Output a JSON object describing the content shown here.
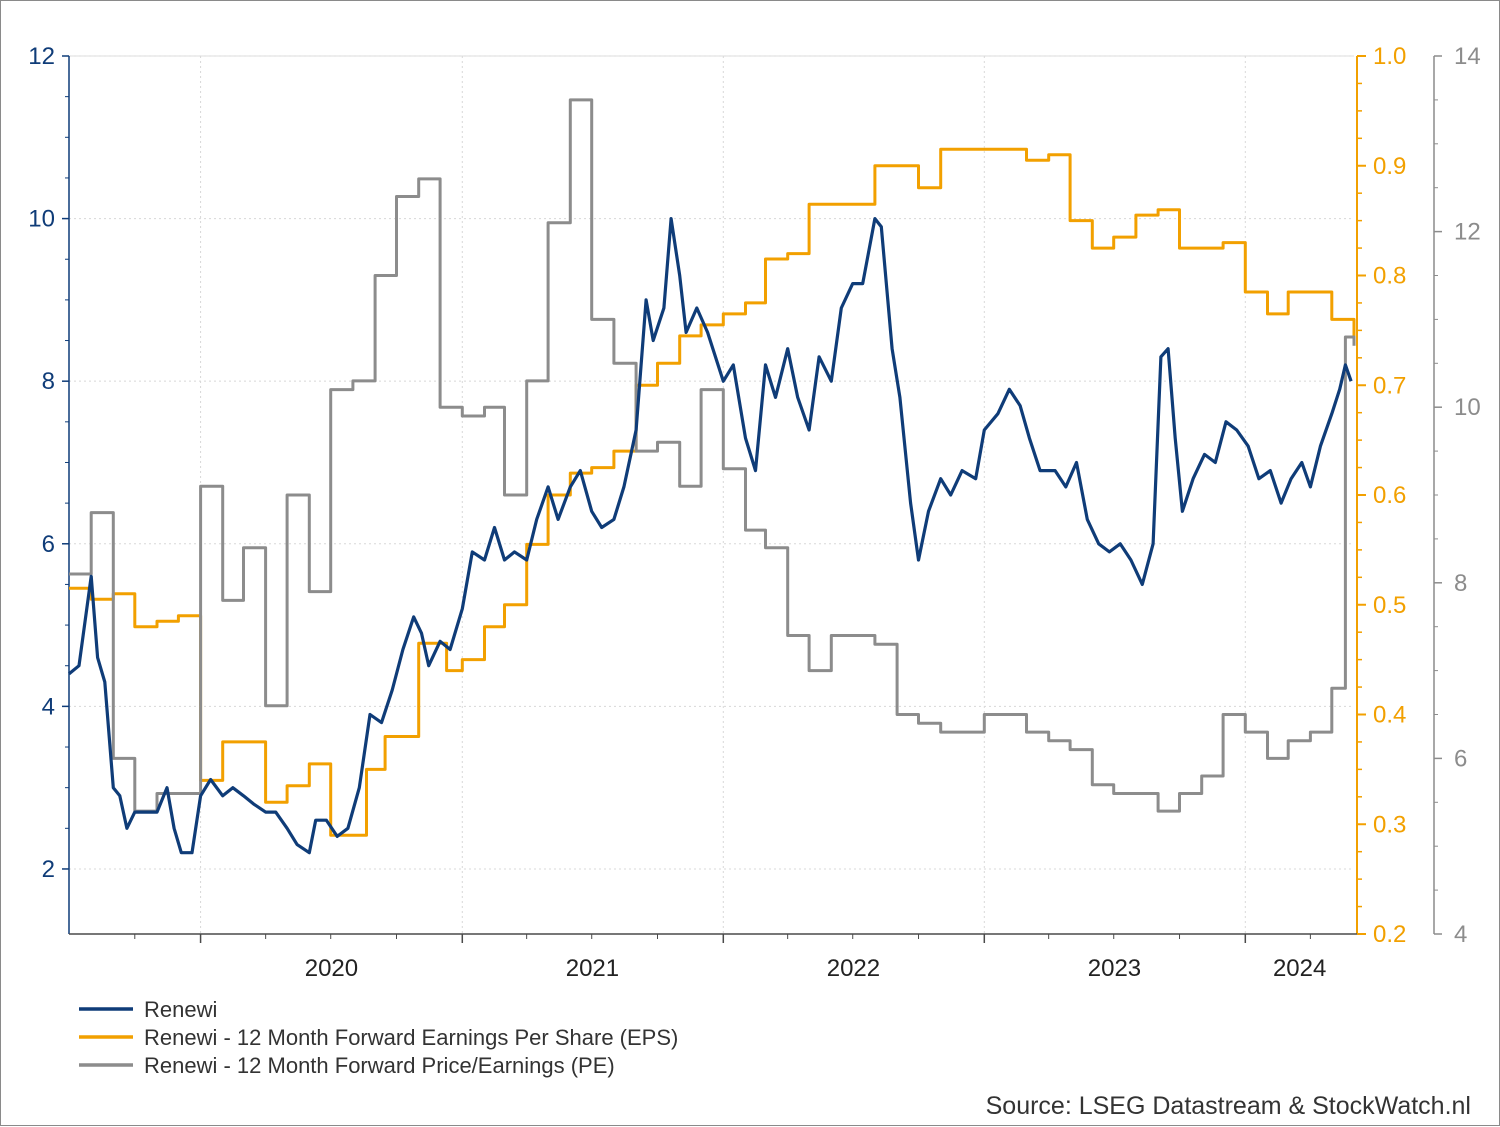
{
  "chart_data": {
    "type": "line",
    "title": "",
    "source": "Source: LSEG Datastream & StockWatch.nl",
    "x_range": [
      "2019-07-01",
      "2024-06-01"
    ],
    "x_ticks": [
      {
        "label": "2020",
        "date": "2020-01-01"
      },
      {
        "label": "2021",
        "date": "2021-01-01"
      },
      {
        "label": "2022",
        "date": "2022-01-01"
      },
      {
        "label": "2023",
        "date": "2023-01-01"
      },
      {
        "label": "2024",
        "date": "2024-01-01"
      }
    ],
    "axes": {
      "left": {
        "series": "Renewi",
        "min": 1.2,
        "max": 12,
        "ticks": [
          "2",
          "4",
          "6",
          "8",
          "10",
          "12"
        ],
        "color": "#0f3c78"
      },
      "right1": {
        "series": "Renewi - 12 Month Forward Earnings Per Share (EPS)",
        "min": 0.2,
        "max": 1.0,
        "ticks": [
          "0.2",
          "0.3",
          "0.4",
          "0.5",
          "0.6",
          "0.7",
          "0.8",
          "0.9",
          "1.0"
        ],
        "color": "#f2a000"
      },
      "right2": {
        "series": "Renewi - 12 Month Forward Price/Earnings (PE)",
        "min": 4,
        "max": 14,
        "ticks": [
          "4",
          "6",
          "8",
          "10",
          "12",
          "14"
        ],
        "color": "#8c8c8c"
      }
    },
    "grid": true,
    "legend_position": "bottom-left",
    "series": [
      {
        "name": "Renewi",
        "axis": "left",
        "color": "#0f3c78",
        "points": [
          [
            "2019-07-01",
            4.4
          ],
          [
            "2019-07-15",
            4.5
          ],
          [
            "2019-08-01",
            5.6
          ],
          [
            "2019-08-10",
            4.6
          ],
          [
            "2019-08-20",
            4.3
          ],
          [
            "2019-09-01",
            3.0
          ],
          [
            "2019-09-10",
            2.9
          ],
          [
            "2019-09-20",
            2.5
          ],
          [
            "2019-10-01",
            2.7
          ],
          [
            "2019-10-15",
            2.7
          ],
          [
            "2019-11-01",
            2.7
          ],
          [
            "2019-11-15",
            3.0
          ],
          [
            "2019-11-25",
            2.5
          ],
          [
            "2019-12-05",
            2.2
          ],
          [
            "2019-12-20",
            2.2
          ],
          [
            "2020-01-01",
            2.9
          ],
          [
            "2020-01-15",
            3.1
          ],
          [
            "2020-02-01",
            2.9
          ],
          [
            "2020-02-15",
            3.0
          ],
          [
            "2020-03-01",
            2.9
          ],
          [
            "2020-03-15",
            2.8
          ],
          [
            "2020-04-01",
            2.7
          ],
          [
            "2020-04-15",
            2.7
          ],
          [
            "2020-05-01",
            2.5
          ],
          [
            "2020-05-15",
            2.3
          ],
          [
            "2020-06-01",
            2.2
          ],
          [
            "2020-06-10",
            2.6
          ],
          [
            "2020-06-25",
            2.6
          ],
          [
            "2020-07-10",
            2.4
          ],
          [
            "2020-07-25",
            2.5
          ],
          [
            "2020-08-10",
            3.0
          ],
          [
            "2020-08-25",
            3.9
          ],
          [
            "2020-09-10",
            3.8
          ],
          [
            "2020-09-25",
            4.2
          ],
          [
            "2020-10-10",
            4.7
          ],
          [
            "2020-10-25",
            5.1
          ],
          [
            "2020-11-05",
            4.9
          ],
          [
            "2020-11-15",
            4.5
          ],
          [
            "2020-12-01",
            4.8
          ],
          [
            "2020-12-15",
            4.7
          ],
          [
            "2021-01-01",
            5.2
          ],
          [
            "2021-01-15",
            5.9
          ],
          [
            "2021-02-01",
            5.8
          ],
          [
            "2021-02-15",
            6.2
          ],
          [
            "2021-03-01",
            5.8
          ],
          [
            "2021-03-15",
            5.9
          ],
          [
            "2021-04-01",
            5.8
          ],
          [
            "2021-04-15",
            6.3
          ],
          [
            "2021-05-01",
            6.7
          ],
          [
            "2021-05-15",
            6.3
          ],
          [
            "2021-06-01",
            6.7
          ],
          [
            "2021-06-15",
            6.9
          ],
          [
            "2021-07-01",
            6.4
          ],
          [
            "2021-07-15",
            6.2
          ],
          [
            "2021-08-01",
            6.3
          ],
          [
            "2021-08-15",
            6.7
          ],
          [
            "2021-09-01",
            7.4
          ],
          [
            "2021-09-15",
            9.0
          ],
          [
            "2021-09-25",
            8.5
          ],
          [
            "2021-10-10",
            8.9
          ],
          [
            "2021-10-20",
            10.0
          ],
          [
            "2021-11-01",
            9.3
          ],
          [
            "2021-11-10",
            8.6
          ],
          [
            "2021-11-25",
            8.9
          ],
          [
            "2021-12-10",
            8.6
          ],
          [
            "2022-01-01",
            8.0
          ],
          [
            "2022-01-15",
            8.2
          ],
          [
            "2022-02-01",
            7.3
          ],
          [
            "2022-02-15",
            6.9
          ],
          [
            "2022-03-01",
            8.2
          ],
          [
            "2022-03-15",
            7.8
          ],
          [
            "2022-04-01",
            8.4
          ],
          [
            "2022-04-15",
            7.8
          ],
          [
            "2022-05-01",
            7.4
          ],
          [
            "2022-05-15",
            8.3
          ],
          [
            "2022-06-01",
            8.0
          ],
          [
            "2022-06-15",
            8.9
          ],
          [
            "2022-07-01",
            9.2
          ],
          [
            "2022-07-15",
            9.2
          ],
          [
            "2022-08-01",
            10.0
          ],
          [
            "2022-08-10",
            9.9
          ],
          [
            "2022-08-25",
            8.4
          ],
          [
            "2022-09-05",
            7.8
          ],
          [
            "2022-09-20",
            6.5
          ],
          [
            "2022-10-01",
            5.8
          ],
          [
            "2022-10-15",
            6.4
          ],
          [
            "2022-11-01",
            6.8
          ],
          [
            "2022-11-15",
            6.6
          ],
          [
            "2022-12-01",
            6.9
          ],
          [
            "2022-12-20",
            6.8
          ],
          [
            "2023-01-01",
            7.4
          ],
          [
            "2023-01-20",
            7.6
          ],
          [
            "2023-02-05",
            7.9
          ],
          [
            "2023-02-20",
            7.7
          ],
          [
            "2023-03-05",
            7.3
          ],
          [
            "2023-03-20",
            6.9
          ],
          [
            "2023-04-10",
            6.9
          ],
          [
            "2023-04-25",
            6.7
          ],
          [
            "2023-05-10",
            7.0
          ],
          [
            "2023-05-25",
            6.3
          ],
          [
            "2023-06-10",
            6.0
          ],
          [
            "2023-06-25",
            5.9
          ],
          [
            "2023-07-10",
            6.0
          ],
          [
            "2023-07-25",
            5.8
          ],
          [
            "2023-08-10",
            5.5
          ],
          [
            "2023-08-25",
            6.0
          ],
          [
            "2023-09-05",
            8.3
          ],
          [
            "2023-09-15",
            8.4
          ],
          [
            "2023-09-25",
            7.3
          ],
          [
            "2023-10-05",
            6.4
          ],
          [
            "2023-10-20",
            6.8
          ],
          [
            "2023-11-05",
            7.1
          ],
          [
            "2023-11-20",
            7.0
          ],
          [
            "2023-12-05",
            7.5
          ],
          [
            "2023-12-20",
            7.4
          ],
          [
            "2024-01-05",
            7.2
          ],
          [
            "2024-01-20",
            6.8
          ],
          [
            "2024-02-05",
            6.9
          ],
          [
            "2024-02-20",
            6.5
          ],
          [
            "2024-03-05",
            6.8
          ],
          [
            "2024-03-20",
            7.0
          ],
          [
            "2024-04-01",
            6.7
          ],
          [
            "2024-04-15",
            7.2
          ],
          [
            "2024-05-01",
            7.6
          ],
          [
            "2024-05-12",
            7.9
          ],
          [
            "2024-05-20",
            8.2
          ],
          [
            "2024-05-28",
            8.0
          ]
        ]
      },
      {
        "name": "Renewi - 12 Month Forward Earnings Per Share (EPS)",
        "axis": "right1",
        "color": "#f2a000",
        "step": true,
        "points": [
          [
            "2019-07-01",
            0.515
          ],
          [
            "2019-08-01",
            0.505
          ],
          [
            "2019-09-01",
            0.51
          ],
          [
            "2019-10-01",
            0.48
          ],
          [
            "2019-11-01",
            0.485
          ],
          [
            "2019-12-01",
            0.49
          ],
          [
            "2020-01-01",
            0.34
          ],
          [
            "2020-02-01",
            0.375
          ],
          [
            "2020-03-01",
            0.375
          ],
          [
            "2020-04-01",
            0.32
          ],
          [
            "2020-05-01",
            0.335
          ],
          [
            "2020-06-01",
            0.355
          ],
          [
            "2020-07-01",
            0.29
          ],
          [
            "2020-08-01",
            0.29
          ],
          [
            "2020-08-20",
            0.35
          ],
          [
            "2020-09-15",
            0.38
          ],
          [
            "2020-11-01",
            0.465
          ],
          [
            "2020-12-10",
            0.44
          ],
          [
            "2021-01-01",
            0.45
          ],
          [
            "2021-02-01",
            0.48
          ],
          [
            "2021-03-01",
            0.5
          ],
          [
            "2021-04-01",
            0.555
          ],
          [
            "2021-05-01",
            0.6
          ],
          [
            "2021-06-01",
            0.62
          ],
          [
            "2021-07-01",
            0.625
          ],
          [
            "2021-08-01",
            0.64
          ],
          [
            "2021-09-01",
            0.7
          ],
          [
            "2021-10-01",
            0.72
          ],
          [
            "2021-11-01",
            0.745
          ],
          [
            "2021-12-01",
            0.755
          ],
          [
            "2022-01-01",
            0.765
          ],
          [
            "2022-02-01",
            0.775
          ],
          [
            "2022-03-01",
            0.815
          ],
          [
            "2022-04-01",
            0.82
          ],
          [
            "2022-05-01",
            0.865
          ],
          [
            "2022-08-01",
            0.9
          ],
          [
            "2022-10-01",
            0.88
          ],
          [
            "2022-11-01",
            0.915
          ],
          [
            "2023-03-01",
            0.905
          ],
          [
            "2023-04-01",
            0.91
          ],
          [
            "2023-05-01",
            0.85
          ],
          [
            "2023-06-01",
            0.825
          ],
          [
            "2023-07-01",
            0.835
          ],
          [
            "2023-08-01",
            0.855
          ],
          [
            "2023-09-01",
            0.86
          ],
          [
            "2023-10-01",
            0.825
          ],
          [
            "2023-12-01",
            0.83
          ],
          [
            "2024-01-01",
            0.785
          ],
          [
            "2024-02-01",
            0.765
          ],
          [
            "2024-03-01",
            0.785
          ],
          [
            "2024-05-01",
            0.76
          ],
          [
            "2024-06-01",
            0.74
          ]
        ]
      },
      {
        "name": "Renewi - 12 Month Forward Price/Earnings (PE)",
        "axis": "right2",
        "color": "#8c8c8c",
        "step": true,
        "points": [
          [
            "2019-07-01",
            8.1
          ],
          [
            "2019-08-01",
            8.8
          ],
          [
            "2019-09-01",
            6.0
          ],
          [
            "2019-10-01",
            5.4
          ],
          [
            "2019-11-01",
            5.6
          ],
          [
            "2019-12-01",
            5.6
          ],
          [
            "2020-01-01",
            9.1
          ],
          [
            "2020-02-01",
            7.8
          ],
          [
            "2020-03-01",
            8.4
          ],
          [
            "2020-04-01",
            6.6
          ],
          [
            "2020-05-01",
            9.0
          ],
          [
            "2020-06-01",
            7.9
          ],
          [
            "2020-07-01",
            10.2
          ],
          [
            "2020-08-01",
            10.3
          ],
          [
            "2020-09-01",
            11.5
          ],
          [
            "2020-10-01",
            12.4
          ],
          [
            "2020-11-01",
            12.6
          ],
          [
            "2020-12-01",
            10.0
          ],
          [
            "2021-01-01",
            9.9
          ],
          [
            "2021-02-01",
            10.0
          ],
          [
            "2021-03-01",
            9.0
          ],
          [
            "2021-04-01",
            10.3
          ],
          [
            "2021-05-01",
            12.1
          ],
          [
            "2021-06-01",
            13.5
          ],
          [
            "2021-07-01",
            11.0
          ],
          [
            "2021-08-01",
            10.5
          ],
          [
            "2021-09-01",
            9.5
          ],
          [
            "2021-10-01",
            9.6
          ],
          [
            "2021-11-01",
            9.1
          ],
          [
            "2021-12-01",
            10.2
          ],
          [
            "2022-01-01",
            9.3
          ],
          [
            "2022-02-01",
            8.6
          ],
          [
            "2022-03-01",
            8.4
          ],
          [
            "2022-04-01",
            7.4
          ],
          [
            "2022-05-01",
            7.0
          ],
          [
            "2022-06-01",
            7.4
          ],
          [
            "2022-08-01",
            7.3
          ],
          [
            "2022-09-01",
            6.5
          ],
          [
            "2022-10-01",
            6.4
          ],
          [
            "2022-11-01",
            6.3
          ],
          [
            "2023-01-01",
            6.5
          ],
          [
            "2023-02-01",
            6.5
          ],
          [
            "2023-03-01",
            6.3
          ],
          [
            "2023-04-01",
            6.2
          ],
          [
            "2023-05-01",
            6.1
          ],
          [
            "2023-06-01",
            5.7
          ],
          [
            "2023-07-01",
            5.6
          ],
          [
            "2023-08-01",
            5.6
          ],
          [
            "2023-09-01",
            5.4
          ],
          [
            "2023-10-01",
            5.6
          ],
          [
            "2023-11-01",
            5.8
          ],
          [
            "2023-12-01",
            6.5
          ],
          [
            "2024-01-01",
            6.3
          ],
          [
            "2024-02-01",
            6.0
          ],
          [
            "2024-03-01",
            6.2
          ],
          [
            "2024-04-01",
            6.3
          ],
          [
            "2024-05-01",
            6.8
          ],
          [
            "2024-05-20",
            10.8
          ],
          [
            "2024-06-01",
            10.7
          ]
        ]
      }
    ]
  }
}
